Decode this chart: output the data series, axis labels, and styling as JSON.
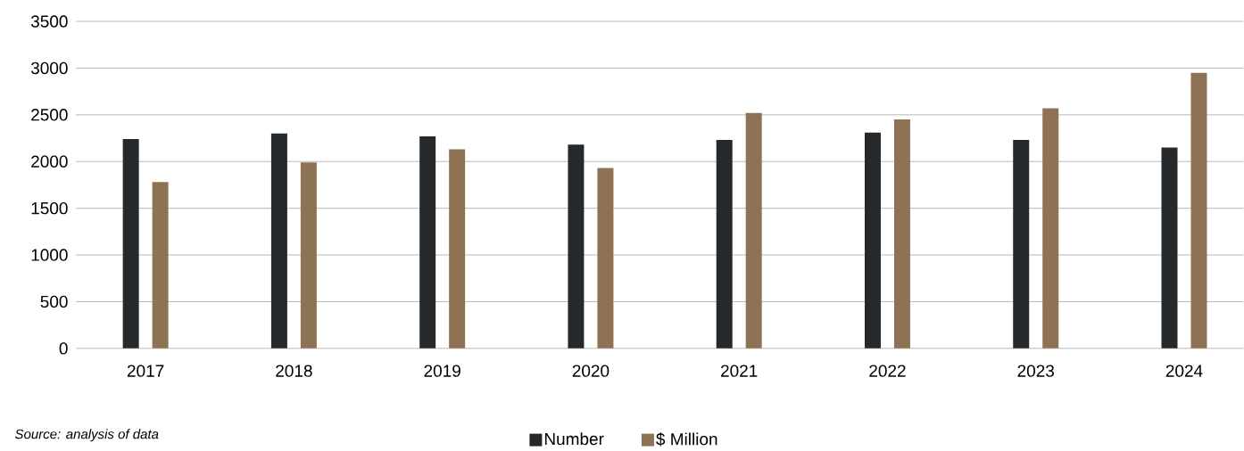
{
  "chart_data": {
    "type": "bar",
    "categories": [
      "2017",
      "2018",
      "2019",
      "2020",
      "2021",
      "2022",
      "2023",
      "2024"
    ],
    "series": [
      {
        "name": "Number",
        "color": "#25292b",
        "values": [
          2240,
          2300,
          2270,
          2180,
          2230,
          2310,
          2230,
          2150
        ]
      },
      {
        "name": "$ Million",
        "color": "#8e7254",
        "values": [
          1780,
          1990,
          2130,
          1930,
          2520,
          2450,
          2570,
          2950
        ]
      }
    ],
    "ylim": [
      0,
      3500
    ],
    "yticks": [
      0,
      500,
      1000,
      1500,
      2000,
      2500,
      3000,
      3500
    ],
    "grid": "y",
    "legend": "bottom",
    "annotations": [
      "*Source: analysis of data*"
    ]
  }
}
